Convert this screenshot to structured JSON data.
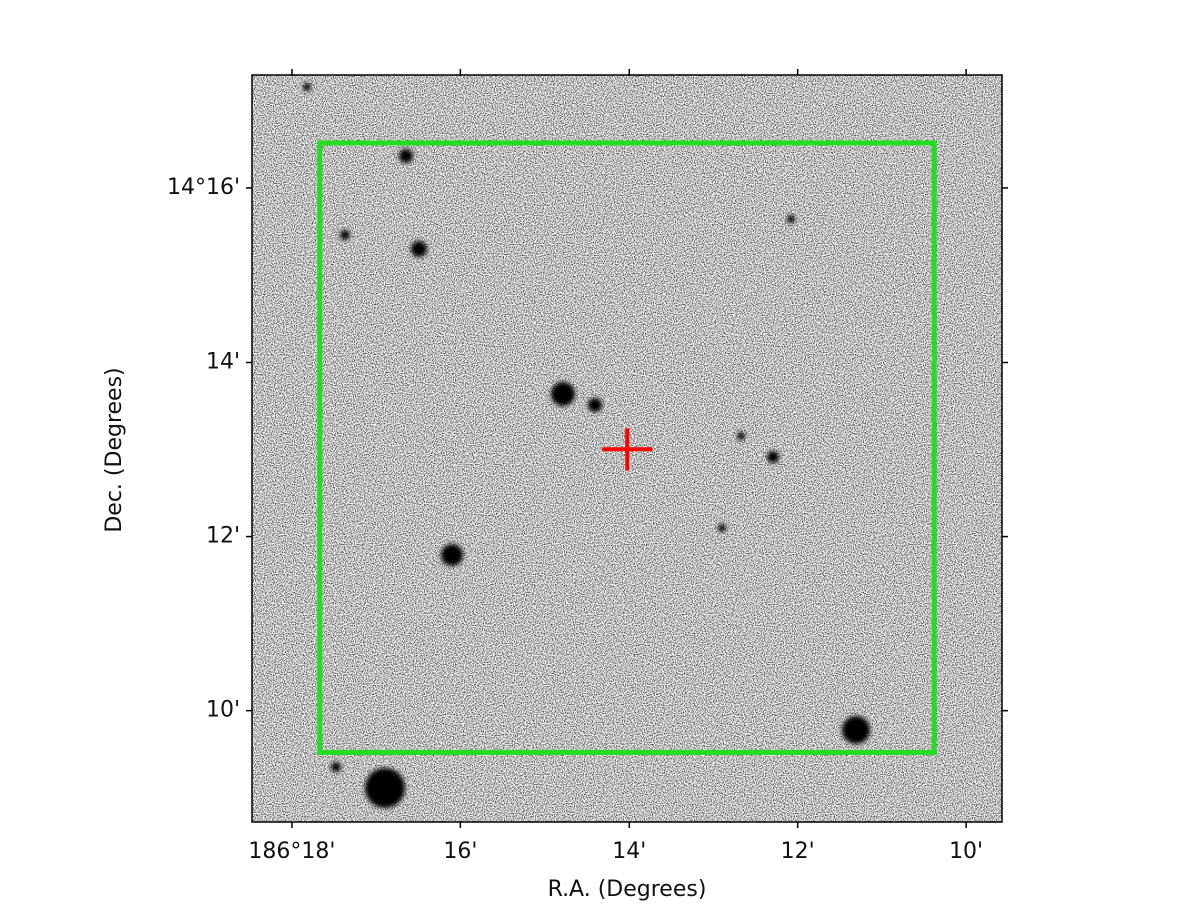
{
  "chart_data": {
    "type": "image",
    "xlabel": "R.A. (Degrees)",
    "ylabel": "Dec. (Degrees)",
    "xlim": [
      186.3079,
      186.1596
    ],
    "ylim": [
      14.1454,
      14.2883
    ],
    "xticks": [
      {
        "value": 186.3,
        "label": "186°18'"
      },
      {
        "value": 186.2667,
        "label": "16'"
      },
      {
        "value": 186.2333,
        "label": "14'"
      },
      {
        "value": 186.2,
        "label": "12'"
      },
      {
        "value": 186.1667,
        "label": "10'"
      }
    ],
    "yticks": [
      {
        "value": 14.1667,
        "label": "10'"
      },
      {
        "value": 14.2,
        "label": "12'"
      },
      {
        "value": 14.2333,
        "label": "14'"
      },
      {
        "value": 14.2667,
        "label": "14°16'"
      }
    ],
    "box": {
      "x": [
        186.2945,
        186.173
      ],
      "y": [
        14.1587,
        14.2753
      ],
      "color": "#22dd22"
    },
    "marker": {
      "x": 186.2337,
      "y": 14.2167,
      "color": "#ff0000"
    }
  }
}
